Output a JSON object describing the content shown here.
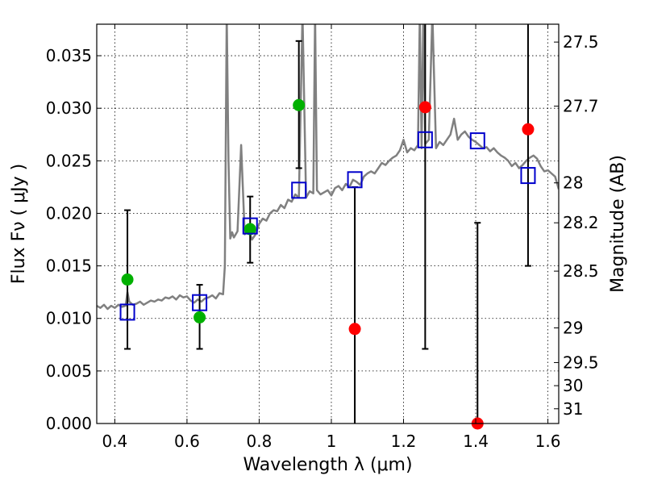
{
  "chart_data": {
    "type": "scatter",
    "title": "",
    "xlabel": "Wavelength  λ (μm)",
    "ylabel": "Flux  Fν  ( μJy )",
    "ylabel_right": "Magnitude (AB)",
    "xlim": [
      0.35,
      1.63
    ],
    "ylim": [
      0.0,
      0.038
    ],
    "grid": true,
    "x_ticks": [
      0.4,
      0.6,
      0.8,
      1.0,
      1.2,
      1.4,
      1.6
    ],
    "x_tick_labels": [
      "0.4",
      "0.6",
      "0.8",
      "1",
      "1.2",
      "1.4",
      "1.6"
    ],
    "y_ticks": [
      0.0,
      0.005,
      0.01,
      0.015,
      0.02,
      0.025,
      0.03,
      0.035
    ],
    "y_tick_labels": [
      "0.000",
      "0.005",
      "0.010",
      "0.015",
      "0.020",
      "0.025",
      "0.030",
      "0.035"
    ],
    "mag_ticks": [
      {
        "label": "27.5",
        "flux": 0.0363
      },
      {
        "label": "27.7",
        "flux": 0.0302
      },
      {
        "label": "28",
        "flux": 0.0229
      },
      {
        "label": "28.2",
        "flux": 0.0191
      },
      {
        "label": "28.5",
        "flux": 0.0145
      },
      {
        "label": "29",
        "flux": 0.0091
      },
      {
        "label": "29.5",
        "flux": 0.0058
      },
      {
        "label": "30",
        "flux": 0.0036
      },
      {
        "label": "31",
        "flux": 0.0014
      }
    ],
    "series": [
      {
        "kind": "line",
        "color": "#808080",
        "x": [
          0.35,
          0.36,
          0.37,
          0.38,
          0.39,
          0.4,
          0.41,
          0.42,
          0.43,
          0.435,
          0.44,
          0.45,
          0.46,
          0.47,
          0.48,
          0.49,
          0.5,
          0.51,
          0.52,
          0.53,
          0.54,
          0.55,
          0.56,
          0.57,
          0.58,
          0.59,
          0.6,
          0.61,
          0.62,
          0.63,
          0.64,
          0.65,
          0.66,
          0.67,
          0.68,
          0.69,
          0.7,
          0.705,
          0.71,
          0.715,
          0.72,
          0.725,
          0.73,
          0.74,
          0.75,
          0.76,
          0.77,
          0.78,
          0.79,
          0.8,
          0.81,
          0.82,
          0.83,
          0.84,
          0.85,
          0.86,
          0.87,
          0.88,
          0.89,
          0.9,
          0.91,
          0.92,
          0.93,
          0.94,
          0.95,
          0.955,
          0.96,
          0.97,
          0.98,
          0.99,
          1.0,
          1.01,
          1.02,
          1.03,
          1.04,
          1.05,
          1.06,
          1.07,
          1.08,
          1.09,
          1.1,
          1.11,
          1.12,
          1.13,
          1.14,
          1.15,
          1.16,
          1.17,
          1.18,
          1.19,
          1.2,
          1.21,
          1.22,
          1.23,
          1.24,
          1.245,
          1.25,
          1.255,
          1.26,
          1.27,
          1.28,
          1.29,
          1.3,
          1.31,
          1.32,
          1.33,
          1.34,
          1.35,
          1.36,
          1.37,
          1.38,
          1.39,
          1.4,
          1.41,
          1.42,
          1.43,
          1.44,
          1.45,
          1.46,
          1.47,
          1.48,
          1.49,
          1.5,
          1.51,
          1.52,
          1.53,
          1.54,
          1.55,
          1.56,
          1.57,
          1.58,
          1.59,
          1.6,
          1.61,
          1.62,
          1.63
        ],
        "y": [
          0.0112,
          0.011,
          0.0113,
          0.0109,
          0.0112,
          0.011,
          0.0113,
          0.0111,
          0.0112,
          0.0125,
          0.0116,
          0.0113,
          0.0114,
          0.0116,
          0.0113,
          0.0115,
          0.0117,
          0.0116,
          0.0118,
          0.0117,
          0.012,
          0.0119,
          0.0121,
          0.0118,
          0.0122,
          0.012,
          0.0121,
          0.0117,
          0.0115,
          0.0118,
          0.0116,
          0.0119,
          0.012,
          0.0122,
          0.0119,
          0.0124,
          0.0123,
          0.015,
          0.039,
          0.025,
          0.0176,
          0.0182,
          0.0177,
          0.0183,
          0.0265,
          0.018,
          0.0185,
          0.0175,
          0.018,
          0.019,
          0.0195,
          0.0193,
          0.02,
          0.0203,
          0.0202,
          0.0208,
          0.0205,
          0.0213,
          0.0211,
          0.0218,
          0.0215,
          0.039,
          0.0215,
          0.0221,
          0.0219,
          0.039,
          0.0222,
          0.0218,
          0.022,
          0.0222,
          0.0217,
          0.0224,
          0.0226,
          0.0222,
          0.0228,
          0.0225,
          0.0232,
          0.023,
          0.0227,
          0.0235,
          0.0238,
          0.024,
          0.0238,
          0.0243,
          0.0248,
          0.0246,
          0.025,
          0.0253,
          0.0255,
          0.026,
          0.027,
          0.0258,
          0.0262,
          0.026,
          0.0265,
          0.039,
          0.0262,
          0.039,
          0.0266,
          0.027,
          0.039,
          0.0262,
          0.0268,
          0.0265,
          0.027,
          0.0275,
          0.029,
          0.027,
          0.0275,
          0.0278,
          0.0273,
          0.027,
          0.0268,
          0.0265,
          0.0262,
          0.0263,
          0.0259,
          0.0262,
          0.0258,
          0.0255,
          0.0253,
          0.025,
          0.0245,
          0.0248,
          0.0243,
          0.0246,
          0.025,
          0.0253,
          0.0255,
          0.0252,
          0.0245,
          0.024,
          0.0241,
          0.0238,
          0.0235,
          0.0223
        ]
      },
      {
        "kind": "points",
        "marker": "circle",
        "color": "#00b000",
        "x": [
          0.435,
          0.635,
          0.775,
          0.91
        ],
        "y": [
          0.0137,
          0.0101,
          0.0185,
          0.0303
        ]
      },
      {
        "kind": "points",
        "marker": "circle",
        "color": "#ff0000",
        "x": [
          1.065,
          1.26,
          1.405,
          1.545
        ],
        "y": [
          0.009,
          0.0301,
          0.0,
          0.028
        ]
      },
      {
        "kind": "points",
        "marker": "square",
        "color": "#0000cc",
        "x": [
          0.435,
          0.635,
          0.775,
          0.91,
          1.065,
          1.26,
          1.405,
          1.545
        ],
        "y": [
          0.0106,
          0.0115,
          0.0188,
          0.0222,
          0.0232,
          0.027,
          0.0269,
          0.0236
        ]
      },
      {
        "kind": "errorbars",
        "color": "#000000",
        "x": [
          0.435,
          0.635,
          0.775,
          0.91,
          1.065,
          1.26,
          1.405,
          1.545
        ],
        "low": [
          0.0071,
          0.0071,
          0.0153,
          0.0243,
          0.0,
          0.0071,
          0.0,
          0.015
        ],
        "high": [
          0.0203,
          0.0132,
          0.0216,
          0.0364,
          0.0225,
          0.038,
          0.0191,
          0.038
        ]
      }
    ]
  }
}
